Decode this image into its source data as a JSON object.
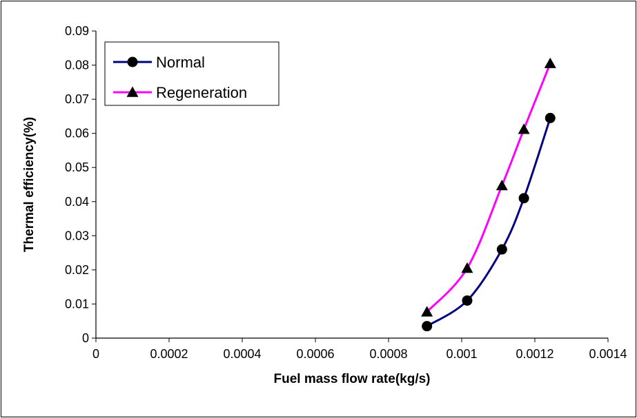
{
  "chart_data": {
    "type": "line",
    "title": "",
    "xlabel": "Fuel mass flow rate(kg/s)",
    "ylabel": "Thermal efficiency(%)",
    "xlim": [
      0,
      0.0014
    ],
    "ylim": [
      0,
      0.09
    ],
    "x_ticks": [
      "0",
      "0.0002",
      "0.0004",
      "0.0006",
      "0.0008",
      "0.001",
      "0.0012",
      "0.0014"
    ],
    "y_ticks": [
      "0",
      "0.01",
      "0.02",
      "0.03",
      "0.04",
      "0.05",
      "0.06",
      "0.07",
      "0.08",
      "0.09"
    ],
    "x_tick_values": [
      0,
      0.0002,
      0.0004,
      0.0006,
      0.0008,
      0.001,
      0.0012,
      0.0014
    ],
    "y_tick_values": [
      0,
      0.01,
      0.02,
      0.03,
      0.04,
      0.05,
      0.06,
      0.07,
      0.08,
      0.09
    ],
    "grid": false,
    "legend_position": "top-left",
    "series": [
      {
        "name": "Normal",
        "marker": "circle",
        "color": "#000080",
        "x": [
          0.000905,
          0.001015,
          0.00111,
          0.00117,
          0.001242
        ],
        "y": [
          0.0035,
          0.011,
          0.026,
          0.041,
          0.0645
        ]
      },
      {
        "name": "Regeneration",
        "marker": "triangle",
        "color": "#FF00FF",
        "x": [
          0.000905,
          0.001015,
          0.00111,
          0.00117,
          0.001242
        ],
        "y": [
          0.0077,
          0.0205,
          0.0447,
          0.0612,
          0.0805
        ]
      }
    ]
  }
}
